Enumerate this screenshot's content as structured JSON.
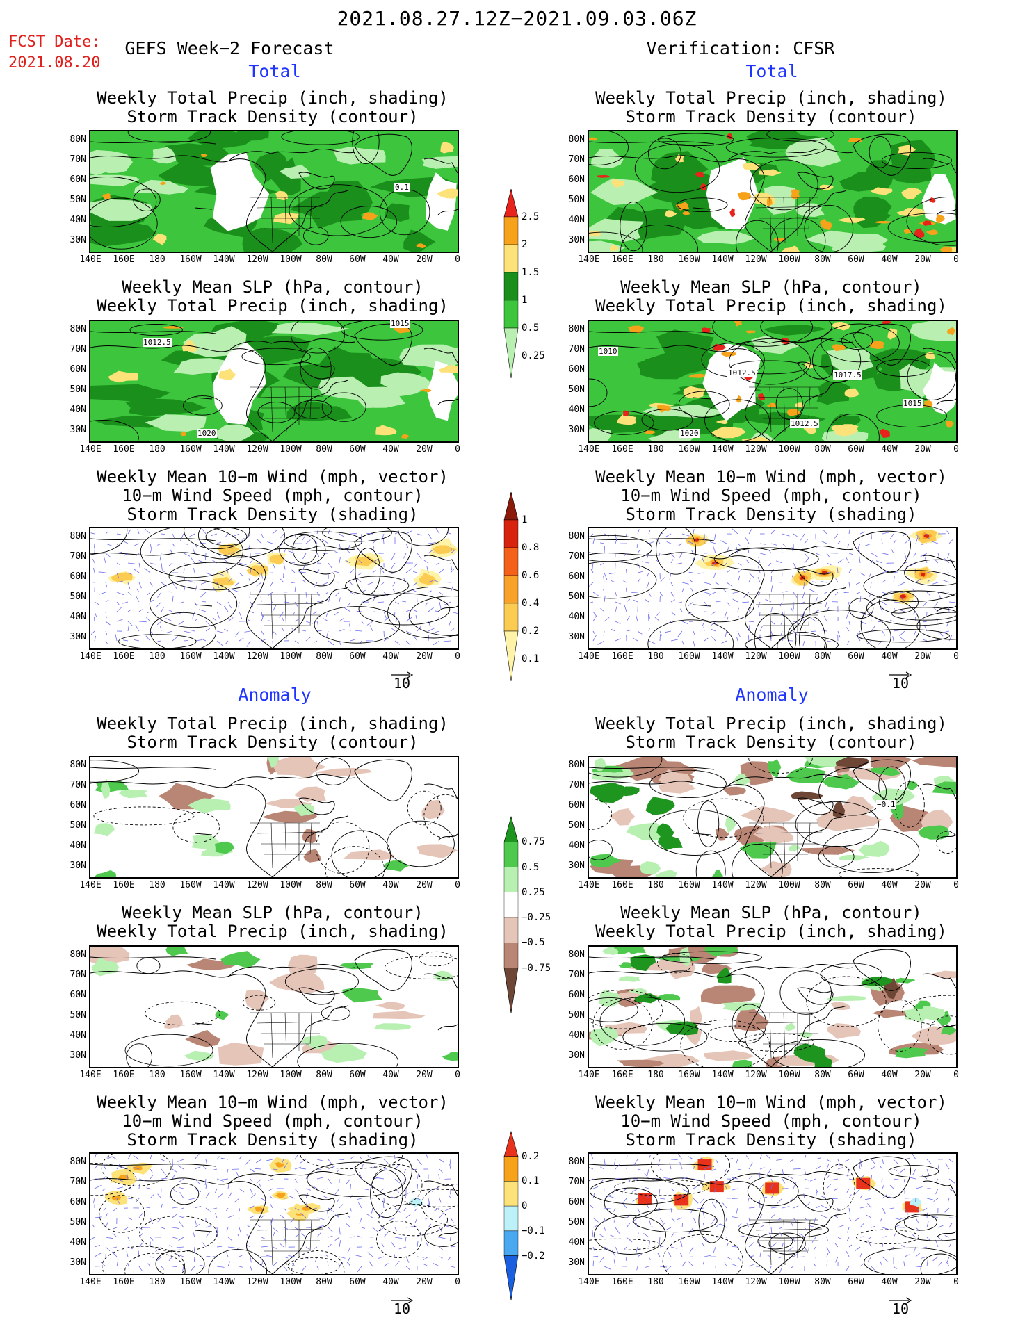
{
  "header": {
    "date_range": "2021.08.27.12Z−2021.09.03.06Z",
    "fcst_label": "FCST Date:",
    "fcst_date": "2021.08.20",
    "left_title": "GEFS Week−2 Forecast",
    "right_title": "Verification: CFSR"
  },
  "sections": {
    "total": "Total",
    "anomaly": "Anomaly"
  },
  "panel_titles": {
    "precip_track": [
      "Weekly Total Precip (inch, shading)",
      "Storm Track Density (contour)"
    ],
    "slp_precip": [
      "Weekly Mean SLP (hPa, contour)",
      "Weekly Total Precip (inch, shading)"
    ],
    "wind": [
      "Weekly Mean 10−m Wind (mph, vector)",
      "10−m Wind Speed (mph, contour)",
      "Storm Track Density (shading)"
    ]
  },
  "axes": {
    "lat_labels": [
      "80N",
      "70N",
      "60N",
      "50N",
      "40N",
      "30N"
    ],
    "lon_labels": [
      "140E",
      "160E",
      "180",
      "160W",
      "140W",
      "120W",
      "100W",
      "80W",
      "60W",
      "40W",
      "20W",
      "0"
    ]
  },
  "vector_ref": "10",
  "colorbars": {
    "precip_total": {
      "labels": [
        "2.5",
        "2",
        "1.5",
        "1",
        "0.5",
        "0.25"
      ],
      "colors": [
        "#e8231c",
        "#f7a21b",
        "#fde279",
        "#1b8f1b",
        "#3dc63d",
        "#b9f0b2"
      ]
    },
    "track_total": {
      "labels": [
        "1",
        "0.8",
        "0.6",
        "0.4",
        "0.2",
        "0.1"
      ],
      "colors": [
        "#8c1a0a",
        "#d8240f",
        "#f4611a",
        "#f8a22a",
        "#fccc52",
        "#fef3a6"
      ]
    },
    "precip_anom": {
      "labels": [
        "0.75",
        "0.5",
        "0.25",
        "−0.25",
        "−0.5",
        "−0.75"
      ],
      "colors": [
        "#1e951e",
        "#4ec94e",
        "#b8f0b2",
        "#ffffff",
        "#e6c5b9",
        "#b98574",
        "#6e4636"
      ]
    },
    "track_anom": {
      "labels": [
        "0.2",
        "0.1",
        "0",
        "−0.1",
        "−0.2"
      ],
      "colors": [
        "#e8321c",
        "#f7a21b",
        "#fde279",
        "#bdf1f8",
        "#4aa8f0",
        "#1a5fe0"
      ]
    },
    "contour_labels": {
      "fc_precip_total": [
        "0.1"
      ],
      "fc_slp_total": [
        "1012.5",
        "1015",
        "1020"
      ],
      "vf_slp_total": [
        "1010",
        "1012.5",
        "1017.5",
        "1015",
        "1012.5",
        "1020"
      ],
      "vf_precip_anom": [
        "−0.1"
      ]
    }
  }
}
